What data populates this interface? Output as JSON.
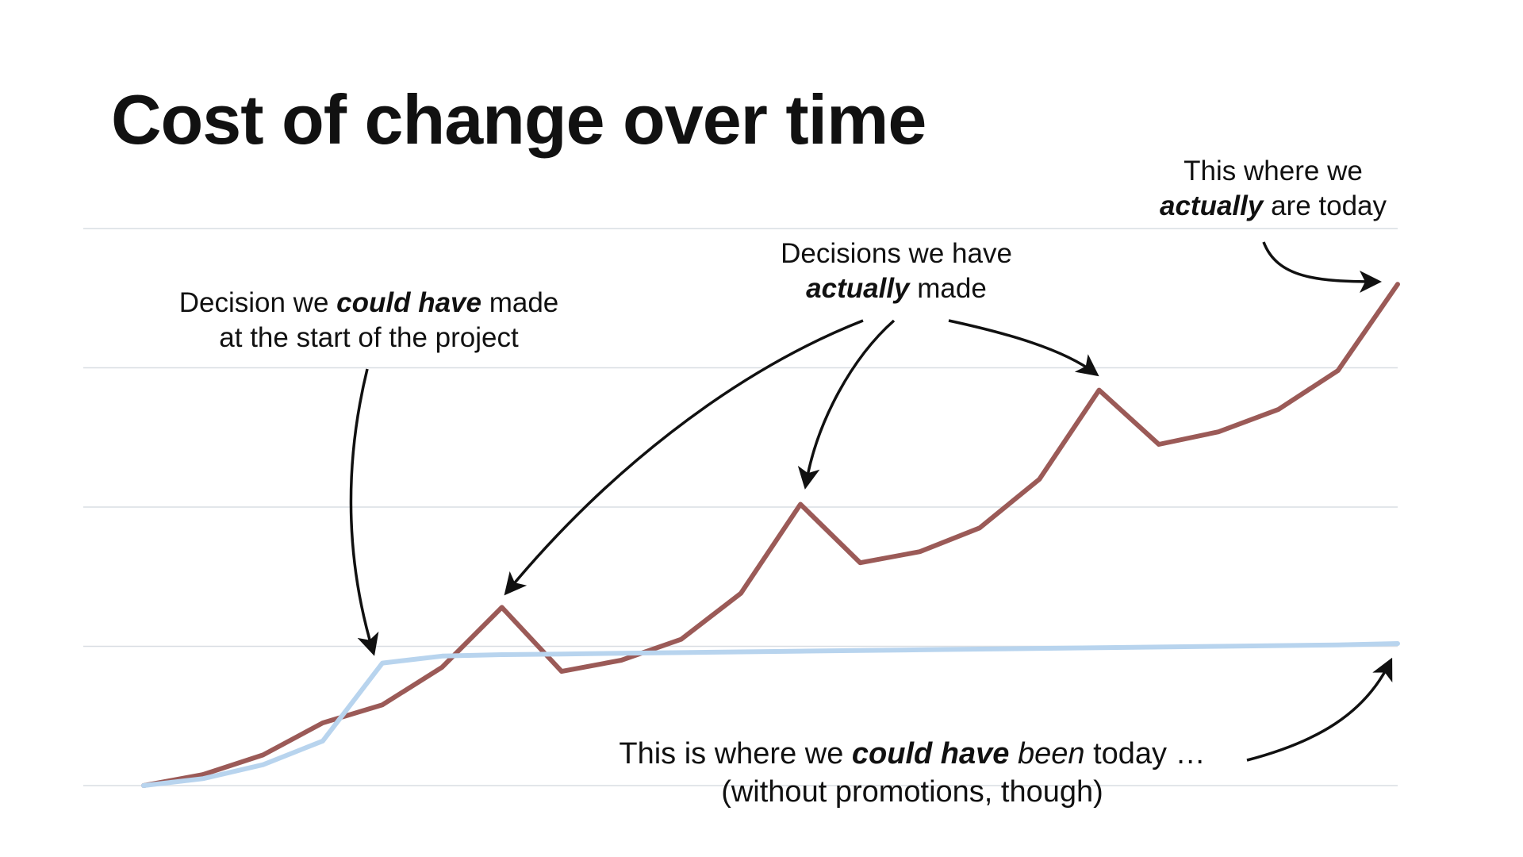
{
  "title": "Cost of change over time",
  "annotations": {
    "could_have_made": {
      "line1_pre": "Decision we ",
      "line1_emph": "could have",
      "line1_post": " made",
      "line2": "at the start of the project"
    },
    "actually_made": {
      "line1": "Decisions we have",
      "line2_emph": "actually",
      "line2_post": " made"
    },
    "actually_today": {
      "line1": "This where we",
      "line2_emph": "actually",
      "line2_post": " are today"
    },
    "could_have_been": {
      "line1_pre": "This is where we ",
      "line1_emph": "could have",
      "line1_space": " ",
      "line1_italic": "been",
      "line1_post": " today …",
      "line2": "(without promotions, though)"
    }
  },
  "chart_data": {
    "type": "line",
    "title": "Cost of change over time",
    "xlabel": "",
    "ylabel": "",
    "x": [
      0,
      1,
      2,
      3,
      4,
      5,
      6,
      7,
      8,
      9,
      10,
      11,
      12,
      13,
      14,
      15,
      16,
      17,
      18,
      19,
      20,
      21
    ],
    "xlim": [
      0,
      21
    ],
    "ylim": [
      0,
      4
    ],
    "grid": true,
    "gridlines": [
      0,
      1,
      2,
      3,
      4
    ],
    "series": [
      {
        "color": "#9b5a57",
        "values": [
          0.0,
          0.08,
          0.22,
          0.45,
          0.58,
          0.85,
          1.28,
          0.82,
          0.9,
          1.05,
          1.38,
          2.02,
          1.6,
          1.68,
          1.85,
          2.2,
          2.84,
          2.45,
          2.54,
          2.7,
          2.98,
          3.6
        ]
      },
      {
        "color": "#b8d4ee",
        "values": [
          0.0,
          0.05,
          0.15,
          0.32,
          0.88,
          0.93,
          0.94,
          0.945,
          0.95,
          0.955,
          0.96,
          0.965,
          0.97,
          0.975,
          0.98,
          0.985,
          0.99,
          0.995,
          1.0,
          1.005,
          1.01,
          1.02
        ]
      }
    ]
  }
}
